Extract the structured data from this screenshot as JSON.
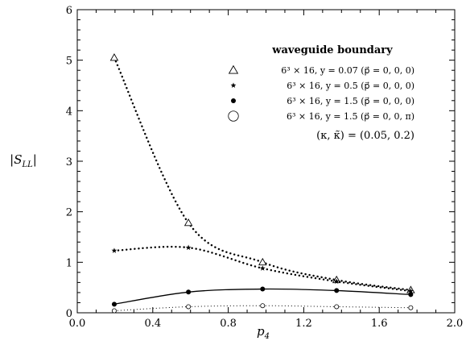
{
  "chart_data": {
    "type": "line",
    "xlabel": "p4",
    "ylabel": "|SLL|",
    "xlim": [
      0.0,
      2.0
    ],
    "ylim": [
      0,
      6
    ],
    "xticks": [
      "0.0",
      "0.4",
      "0.8",
      "1.2",
      "1.6",
      "2.0"
    ],
    "yticks": [
      "0",
      "1",
      "2",
      "3",
      "4",
      "5",
      "6"
    ],
    "legend_title": "waveguide boundary",
    "legend_placement": "top-right",
    "grid": false,
    "series": [
      {
        "name": "6³ × 16,  y = 0.07  (p⃗ = 0, 0, 0)",
        "marker": "open-triangle",
        "line": "dotted-heavy",
        "x": [
          0.196,
          0.589,
          0.982,
          1.374,
          1.767
        ],
        "y": [
          5.05,
          1.78,
          1.0,
          0.65,
          0.45
        ]
      },
      {
        "name": "6³ × 16,   y = 0.5    (p⃗ = 0, 0, 0)",
        "marker": "star",
        "line": "dotted-heavy",
        "x": [
          0.196,
          0.589,
          0.982,
          1.374,
          1.767
        ],
        "y": [
          1.23,
          1.29,
          0.88,
          0.62,
          0.43
        ]
      },
      {
        "name": "6³ × 16,   y = 1.5    (p⃗ = 0, 0, 0)",
        "marker": "filled-circle",
        "line": "solid",
        "x": [
          0.196,
          0.589,
          0.982,
          1.374,
          1.767
        ],
        "y": [
          0.17,
          0.41,
          0.47,
          0.44,
          0.36
        ]
      },
      {
        "name": "6³ × 16,   y = 1.5   (p⃗ = 0, 0, π)",
        "marker": "open-circle",
        "line": "dotted-light",
        "x": [
          0.196,
          0.589,
          0.982,
          1.374,
          1.767
        ],
        "y": [
          0.04,
          0.12,
          0.14,
          0.12,
          0.1
        ]
      }
    ],
    "annotation": "(κ,   κ̃)   =   (0.05,   0.2)"
  }
}
